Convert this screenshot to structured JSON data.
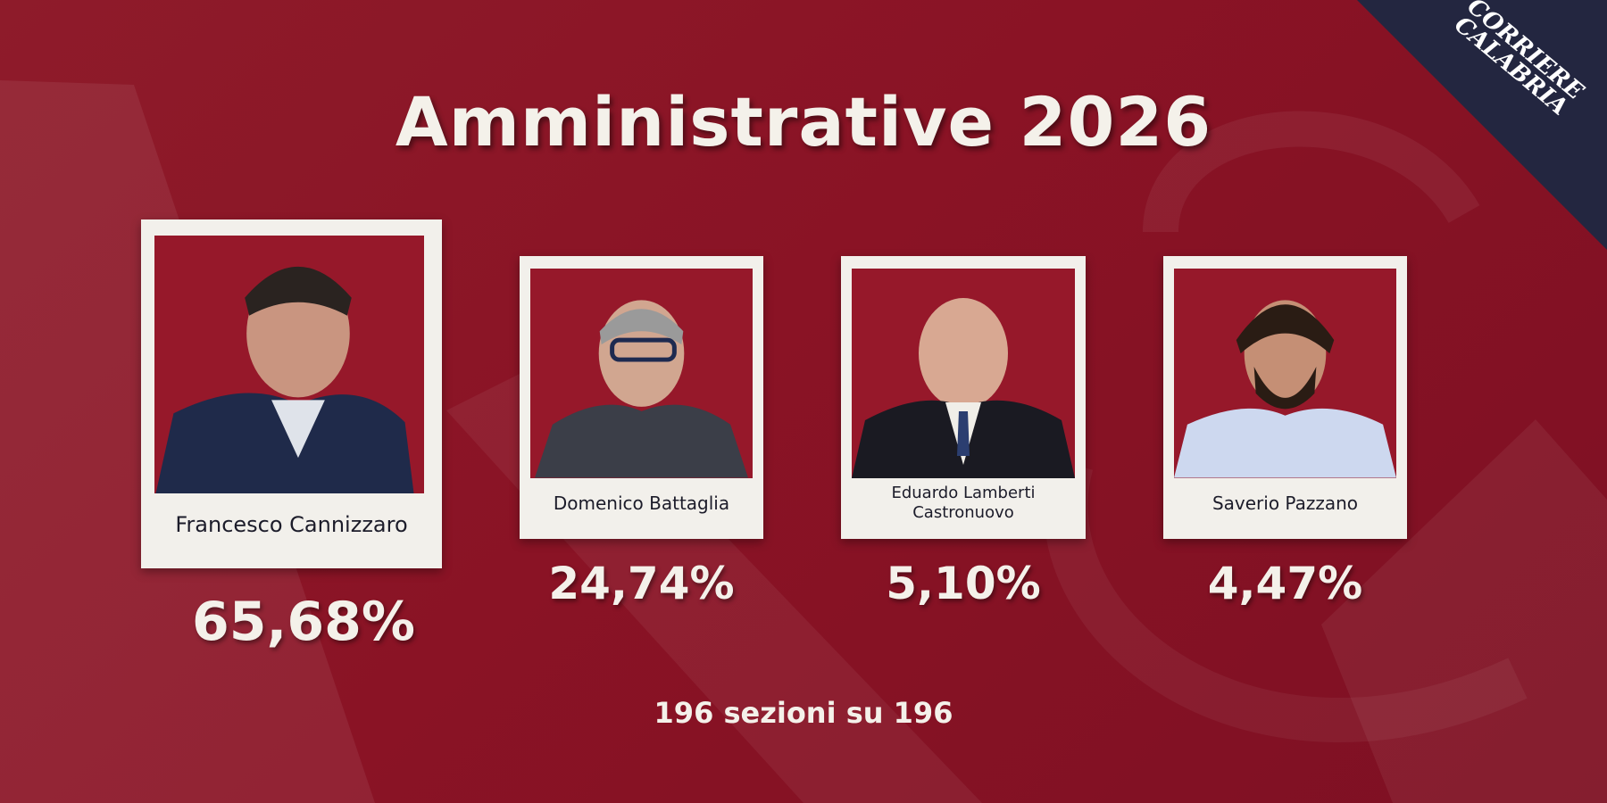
{
  "header": {
    "title": "Amministrative 2026"
  },
  "logo": {
    "lines": [
      "CORRIERE",
      "CALABRIA"
    ]
  },
  "candidates": [
    {
      "name": "Francesco Cannizzaro",
      "percent": "65,68%"
    },
    {
      "name": "Domenico Battaglia",
      "percent": "24,74%"
    },
    {
      "name": "Eduardo Lamberti Castronuovo",
      "percent": "5,10%"
    },
    {
      "name": "Saverio Pazzano",
      "percent": "4,47%"
    }
  ],
  "footer": "196 sezioni su 196"
}
